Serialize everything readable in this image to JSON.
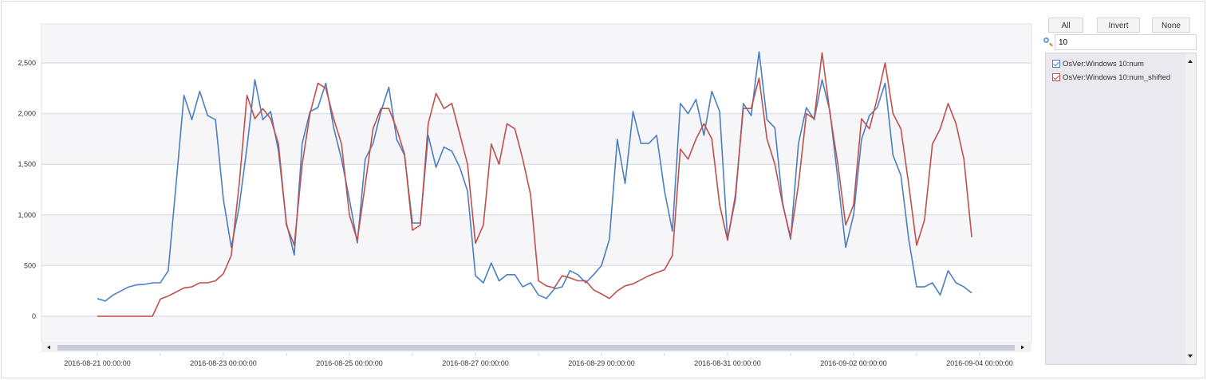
{
  "legend_panel": {
    "buttons": {
      "all": "All",
      "invert": "Invert",
      "none": "None"
    },
    "search_value": "10",
    "items": [
      {
        "label": "OsVer:Windows 10:num",
        "checked": true,
        "color": "#4a7fc1"
      },
      {
        "label": "OsVer:Windows 10:num_shifted",
        "checked": true,
        "color": "#c0504d"
      }
    ]
  },
  "chart_data": {
    "type": "line",
    "title": "",
    "xlabel": "",
    "ylabel": "",
    "ylim": [
      -500,
      3000
    ],
    "grid": true,
    "legend_placement": "right",
    "y_ticks": [
      0,
      500,
      1000,
      1500,
      2000,
      2500
    ],
    "y_tick_labels": [
      "0",
      "500",
      "1,000",
      "1,500",
      "2,000",
      "2,500"
    ],
    "x_tick_labels": [
      "2016-08-21 00:00:00",
      "2016-08-23 00:00:00",
      "2016-08-25 00:00:00",
      "2016-08-27 00:00:00",
      "2016-08-29 00:00:00",
      "2016-08-31 00:00:00",
      "2016-09-02 00:00:00",
      "2016-09-04 00:00:00"
    ],
    "xlim": [
      "2016-08-20 09:00",
      "2016-09-04 12:00"
    ],
    "x": [
      "2016-08-21 00:00",
      "2016-08-21 03:00",
      "2016-08-21 06:00",
      "2016-08-21 09:00",
      "2016-08-21 12:00",
      "2016-08-21 15:00",
      "2016-08-21 18:00",
      "2016-08-21 21:00",
      "2016-08-22 00:00",
      "2016-08-22 03:00",
      "2016-08-22 06:00",
      "2016-08-22 09:00",
      "2016-08-22 12:00",
      "2016-08-22 15:00",
      "2016-08-22 18:00",
      "2016-08-22 21:00",
      "2016-08-23 00:00",
      "2016-08-23 03:00",
      "2016-08-23 06:00",
      "2016-08-23 09:00",
      "2016-08-23 12:00",
      "2016-08-23 15:00",
      "2016-08-23 18:00",
      "2016-08-23 21:00",
      "2016-08-24 00:00",
      "2016-08-24 03:00",
      "2016-08-24 06:00",
      "2016-08-24 09:00",
      "2016-08-24 12:00",
      "2016-08-24 15:00",
      "2016-08-24 18:00",
      "2016-08-24 21:00",
      "2016-08-25 00:00",
      "2016-08-25 03:00",
      "2016-08-25 06:00",
      "2016-08-25 09:00",
      "2016-08-25 12:00",
      "2016-08-25 15:00",
      "2016-08-25 18:00",
      "2016-08-25 21:00",
      "2016-08-26 00:00",
      "2016-08-26 03:00",
      "2016-08-26 06:00",
      "2016-08-26 09:00",
      "2016-08-26 12:00",
      "2016-08-26 15:00",
      "2016-08-26 18:00",
      "2016-08-26 21:00",
      "2016-08-27 00:00",
      "2016-08-27 03:00",
      "2016-08-27 06:00",
      "2016-08-27 09:00",
      "2016-08-27 12:00",
      "2016-08-27 15:00",
      "2016-08-27 18:00",
      "2016-08-27 21:00",
      "2016-08-28 00:00",
      "2016-08-28 03:00",
      "2016-08-28 06:00",
      "2016-08-28 09:00",
      "2016-08-28 12:00",
      "2016-08-28 15:00",
      "2016-08-28 18:00",
      "2016-08-28 21:00",
      "2016-08-29 00:00",
      "2016-08-29 03:00",
      "2016-08-29 06:00",
      "2016-08-29 09:00",
      "2016-08-29 12:00",
      "2016-08-29 15:00",
      "2016-08-29 18:00",
      "2016-08-29 21:00",
      "2016-08-30 00:00",
      "2016-08-30 03:00",
      "2016-08-30 06:00",
      "2016-08-30 09:00",
      "2016-08-30 12:00",
      "2016-08-30 15:00",
      "2016-08-30 18:00",
      "2016-08-30 21:00",
      "2016-08-31 00:00",
      "2016-08-31 03:00",
      "2016-08-31 06:00",
      "2016-08-31 09:00",
      "2016-08-31 12:00",
      "2016-08-31 15:00",
      "2016-08-31 18:00",
      "2016-08-31 21:00",
      "2016-09-01 00:00",
      "2016-09-01 03:00",
      "2016-09-01 06:00",
      "2016-09-01 09:00",
      "2016-09-01 12:00",
      "2016-09-01 15:00",
      "2016-09-01 18:00",
      "2016-09-01 21:00",
      "2016-09-02 00:00",
      "2016-09-02 03:00",
      "2016-09-02 06:00",
      "2016-09-02 09:00",
      "2016-09-02 12:00",
      "2016-09-02 15:00",
      "2016-09-02 18:00",
      "2016-09-02 21:00",
      "2016-09-03 00:00",
      "2016-09-03 03:00",
      "2016-09-03 06:00",
      "2016-09-03 09:00",
      "2016-09-03 12:00",
      "2016-09-03 15:00",
      "2016-09-03 18:00",
      "2016-09-03 21:00"
    ],
    "series": [
      {
        "name": "OsVer:Windows 10:num",
        "color": "#4a7fc1",
        "values": [
          175,
          150,
          210,
          250,
          290,
          310,
          315,
          330,
          330,
          450,
          1310,
          2180,
          1940,
          2220,
          1980,
          1940,
          1155,
          680,
          1080,
          1670,
          2335,
          1940,
          2020,
          1630,
          920,
          605,
          1705,
          2020,
          2060,
          2300,
          1860,
          1550,
          1155,
          725,
          1550,
          1705,
          2020,
          2260,
          1745,
          1590,
          920,
          920,
          1785,
          1470,
          1670,
          1630,
          1470,
          1235,
          400,
          330,
          525,
          350,
          410,
          410,
          290,
          330,
          210,
          175,
          270,
          290,
          450,
          410,
          330,
          410,
          500,
          760,
          1745,
          1310,
          2020,
          1705,
          1705,
          1785,
          1235,
          840,
          2100,
          2000,
          2140,
          1785,
          2220,
          2020,
          760,
          1155,
          2100,
          1980,
          2610,
          1940,
          1860,
          1115,
          760,
          1705,
          2060,
          1940,
          2335,
          2020,
          1350,
          680,
          1000,
          1745,
          1980,
          2060,
          2300,
          1590,
          1390,
          760,
          290,
          290,
          330,
          210,
          450,
          330,
          290,
          230
        ]
      },
      {
        "name": "OsVer:Windows 10:num_shifted",
        "color": "#c0504d",
        "values": [
          0,
          0,
          0,
          0,
          0,
          0,
          0,
          0,
          170,
          200,
          240,
          280,
          290,
          330,
          330,
          350,
          420,
          600,
          1300,
          2180,
          1950,
          2050,
          1950,
          1700,
          900,
          700,
          1500,
          2000,
          2300,
          2250,
          1950,
          1700,
          1000,
          750,
          1300,
          1850,
          2050,
          2050,
          1850,
          1600,
          850,
          900,
          1900,
          2200,
          2050,
          2100,
          1800,
          1500,
          720,
          900,
          1700,
          1500,
          1900,
          1850,
          1550,
          1200,
          350,
          300,
          280,
          400,
          380,
          350,
          350,
          260,
          220,
          175,
          250,
          300,
          320,
          360,
          400,
          430,
          460,
          600,
          1650,
          1550,
          1750,
          1900,
          1750,
          1100,
          750,
          1200,
          2050,
          2050,
          2350,
          1750,
          1500,
          1100,
          780,
          1300,
          2000,
          1950,
          2600,
          2000,
          1500,
          900,
          1100,
          1950,
          1850,
          2150,
          2500,
          2000,
          1850,
          1300,
          700,
          950,
          1700,
          1850,
          2100,
          1900,
          1550,
          780
        ]
      }
    ]
  }
}
